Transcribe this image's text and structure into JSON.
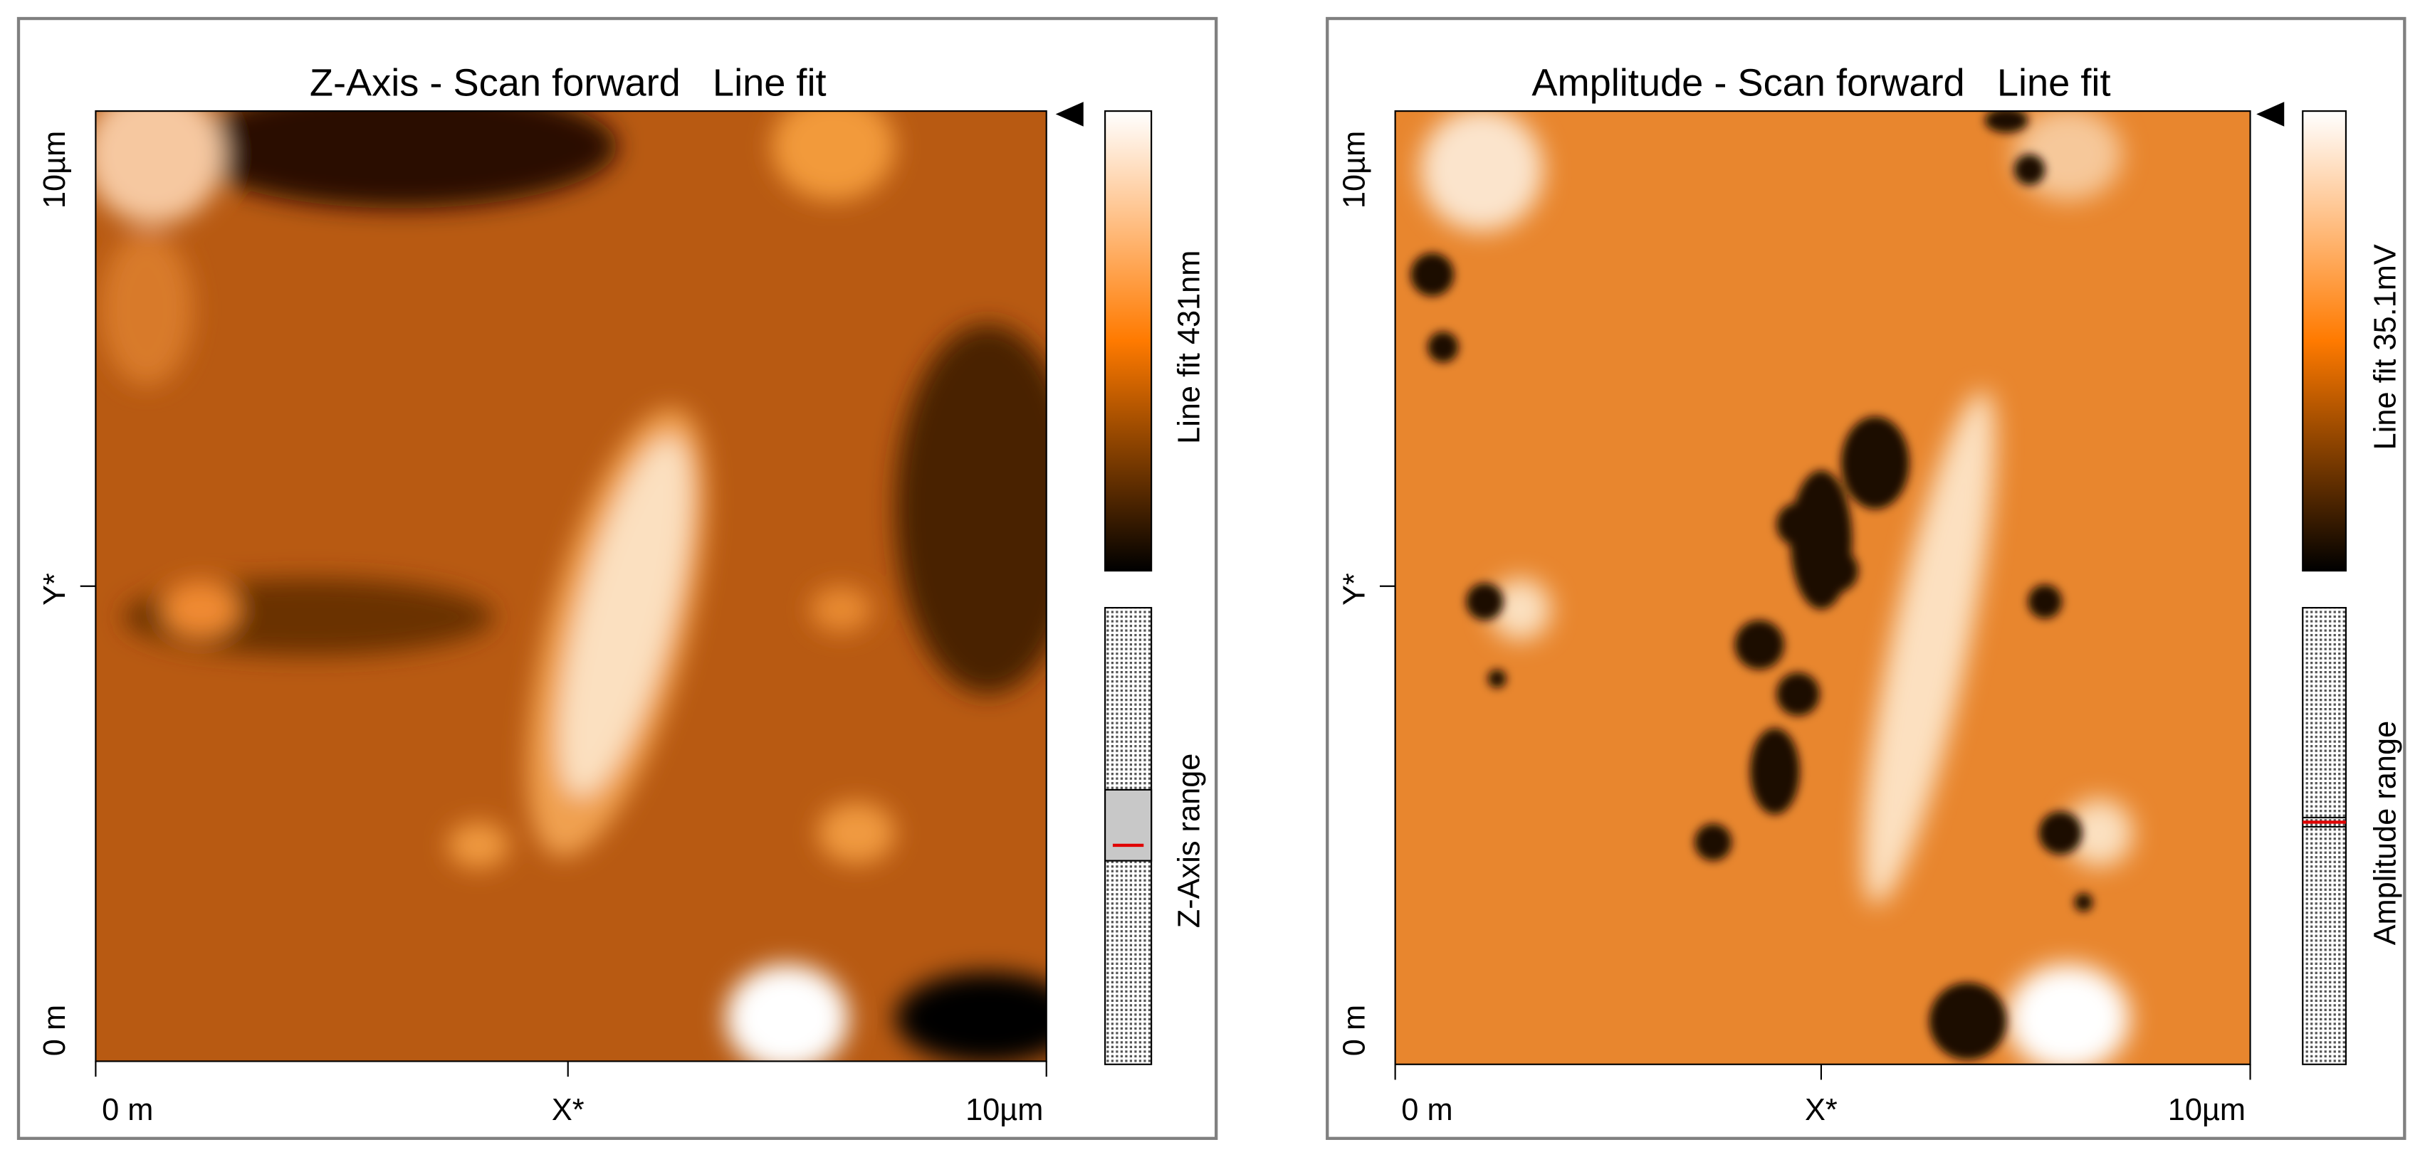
{
  "panels": [
    {
      "title": "Z-Axis - Scan forward   Line fit",
      "y_axis": {
        "top": "10µm",
        "middle": "Y*",
        "bottom": "0 m"
      },
      "x_axis": {
        "left": "0 m",
        "middle": "X*",
        "right": "10µm"
      },
      "colorbar_label": "Line fit 431nm",
      "range_label": "Z-Axis range"
    },
    {
      "title": "Amplitude - Scan forward   Line fit",
      "y_axis": {
        "top": "10µm",
        "middle": "Y*",
        "bottom": "0 m"
      },
      "x_axis": {
        "left": "0 m",
        "middle": "X*",
        "right": "10µm"
      },
      "colorbar_label": "Line fit 35.1mV",
      "range_label": "Amplitude range"
    }
  ]
}
